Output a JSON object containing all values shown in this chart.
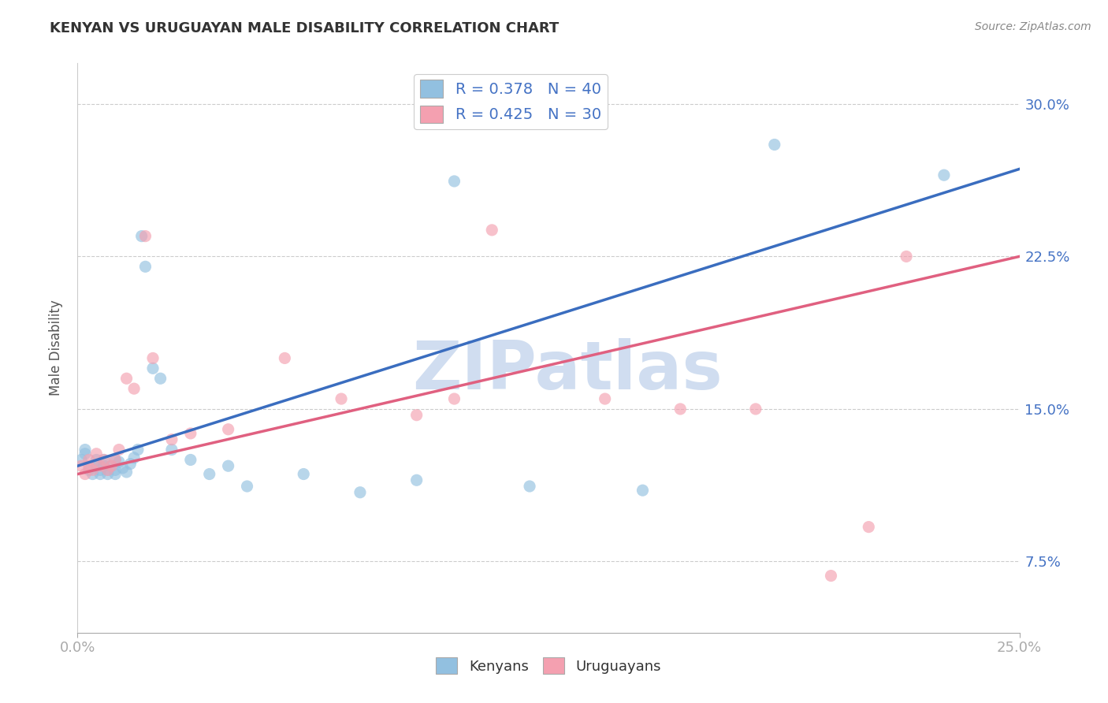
{
  "title": "KENYAN VS URUGUAYAN MALE DISABILITY CORRELATION CHART",
  "source": "Source: ZipAtlas.com",
  "ylabel": "Male Disability",
  "xlim": [
    0.0,
    0.25
  ],
  "ylim": [
    0.04,
    0.32
  ],
  "xtick_positions": [
    0.0,
    0.25
  ],
  "xtick_labels": [
    "0.0%",
    "25.0%"
  ],
  "ytick_positions": [
    0.075,
    0.15,
    0.225,
    0.3
  ],
  "ytick_labels": [
    "7.5%",
    "15.0%",
    "22.5%",
    "30.0%"
  ],
  "kenyan_color": "#92c0e0",
  "uruguayan_color": "#f4a0b0",
  "kenyan_line_color": "#3a6dbf",
  "uruguayan_line_color": "#e06080",
  "watermark_text": "ZIPatlas",
  "watermark_color": "#c8d8ee",
  "background_color": "#ffffff",
  "grid_color": "#cccccc",
  "kenyan_x": [
    0.001,
    0.002,
    0.002,
    0.003,
    0.004,
    0.005,
    0.005,
    0.006,
    0.006,
    0.007,
    0.007,
    0.008,
    0.008,
    0.009,
    0.01,
    0.01,
    0.01,
    0.011,
    0.012,
    0.013,
    0.014,
    0.015,
    0.016,
    0.017,
    0.018,
    0.02,
    0.022,
    0.025,
    0.03,
    0.035,
    0.04,
    0.045,
    0.06,
    0.075,
    0.09,
    0.1,
    0.12,
    0.15,
    0.185,
    0.23
  ],
  "kenyan_y": [
    0.125,
    0.128,
    0.13,
    0.12,
    0.118,
    0.122,
    0.125,
    0.118,
    0.12,
    0.122,
    0.125,
    0.12,
    0.118,
    0.122,
    0.125,
    0.12,
    0.118,
    0.124,
    0.121,
    0.119,
    0.123,
    0.126,
    0.13,
    0.235,
    0.22,
    0.17,
    0.165,
    0.13,
    0.125,
    0.118,
    0.122,
    0.112,
    0.118,
    0.109,
    0.115,
    0.262,
    0.112,
    0.11,
    0.28,
    0.265
  ],
  "uruguayan_x": [
    0.001,
    0.002,
    0.003,
    0.003,
    0.004,
    0.005,
    0.006,
    0.007,
    0.008,
    0.009,
    0.01,
    0.011,
    0.013,
    0.015,
    0.018,
    0.02,
    0.025,
    0.03,
    0.04,
    0.055,
    0.07,
    0.09,
    0.1,
    0.11,
    0.14,
    0.16,
    0.18,
    0.2,
    0.21,
    0.22
  ],
  "uruguayan_y": [
    0.122,
    0.118,
    0.125,
    0.122,
    0.12,
    0.128,
    0.122,
    0.125,
    0.12,
    0.122,
    0.125,
    0.13,
    0.165,
    0.16,
    0.235,
    0.175,
    0.135,
    0.138,
    0.14,
    0.175,
    0.155,
    0.147,
    0.155,
    0.238,
    0.155,
    0.15,
    0.15,
    0.068,
    0.092,
    0.225
  ],
  "kenyan_line_x0": 0.0,
  "kenyan_line_y0": 0.122,
  "kenyan_line_x1": 0.25,
  "kenyan_line_y1": 0.268,
  "uruguayan_line_x0": 0.0,
  "uruguayan_line_y0": 0.118,
  "uruguayan_line_x1": 0.25,
  "uruguayan_line_y1": 0.225
}
